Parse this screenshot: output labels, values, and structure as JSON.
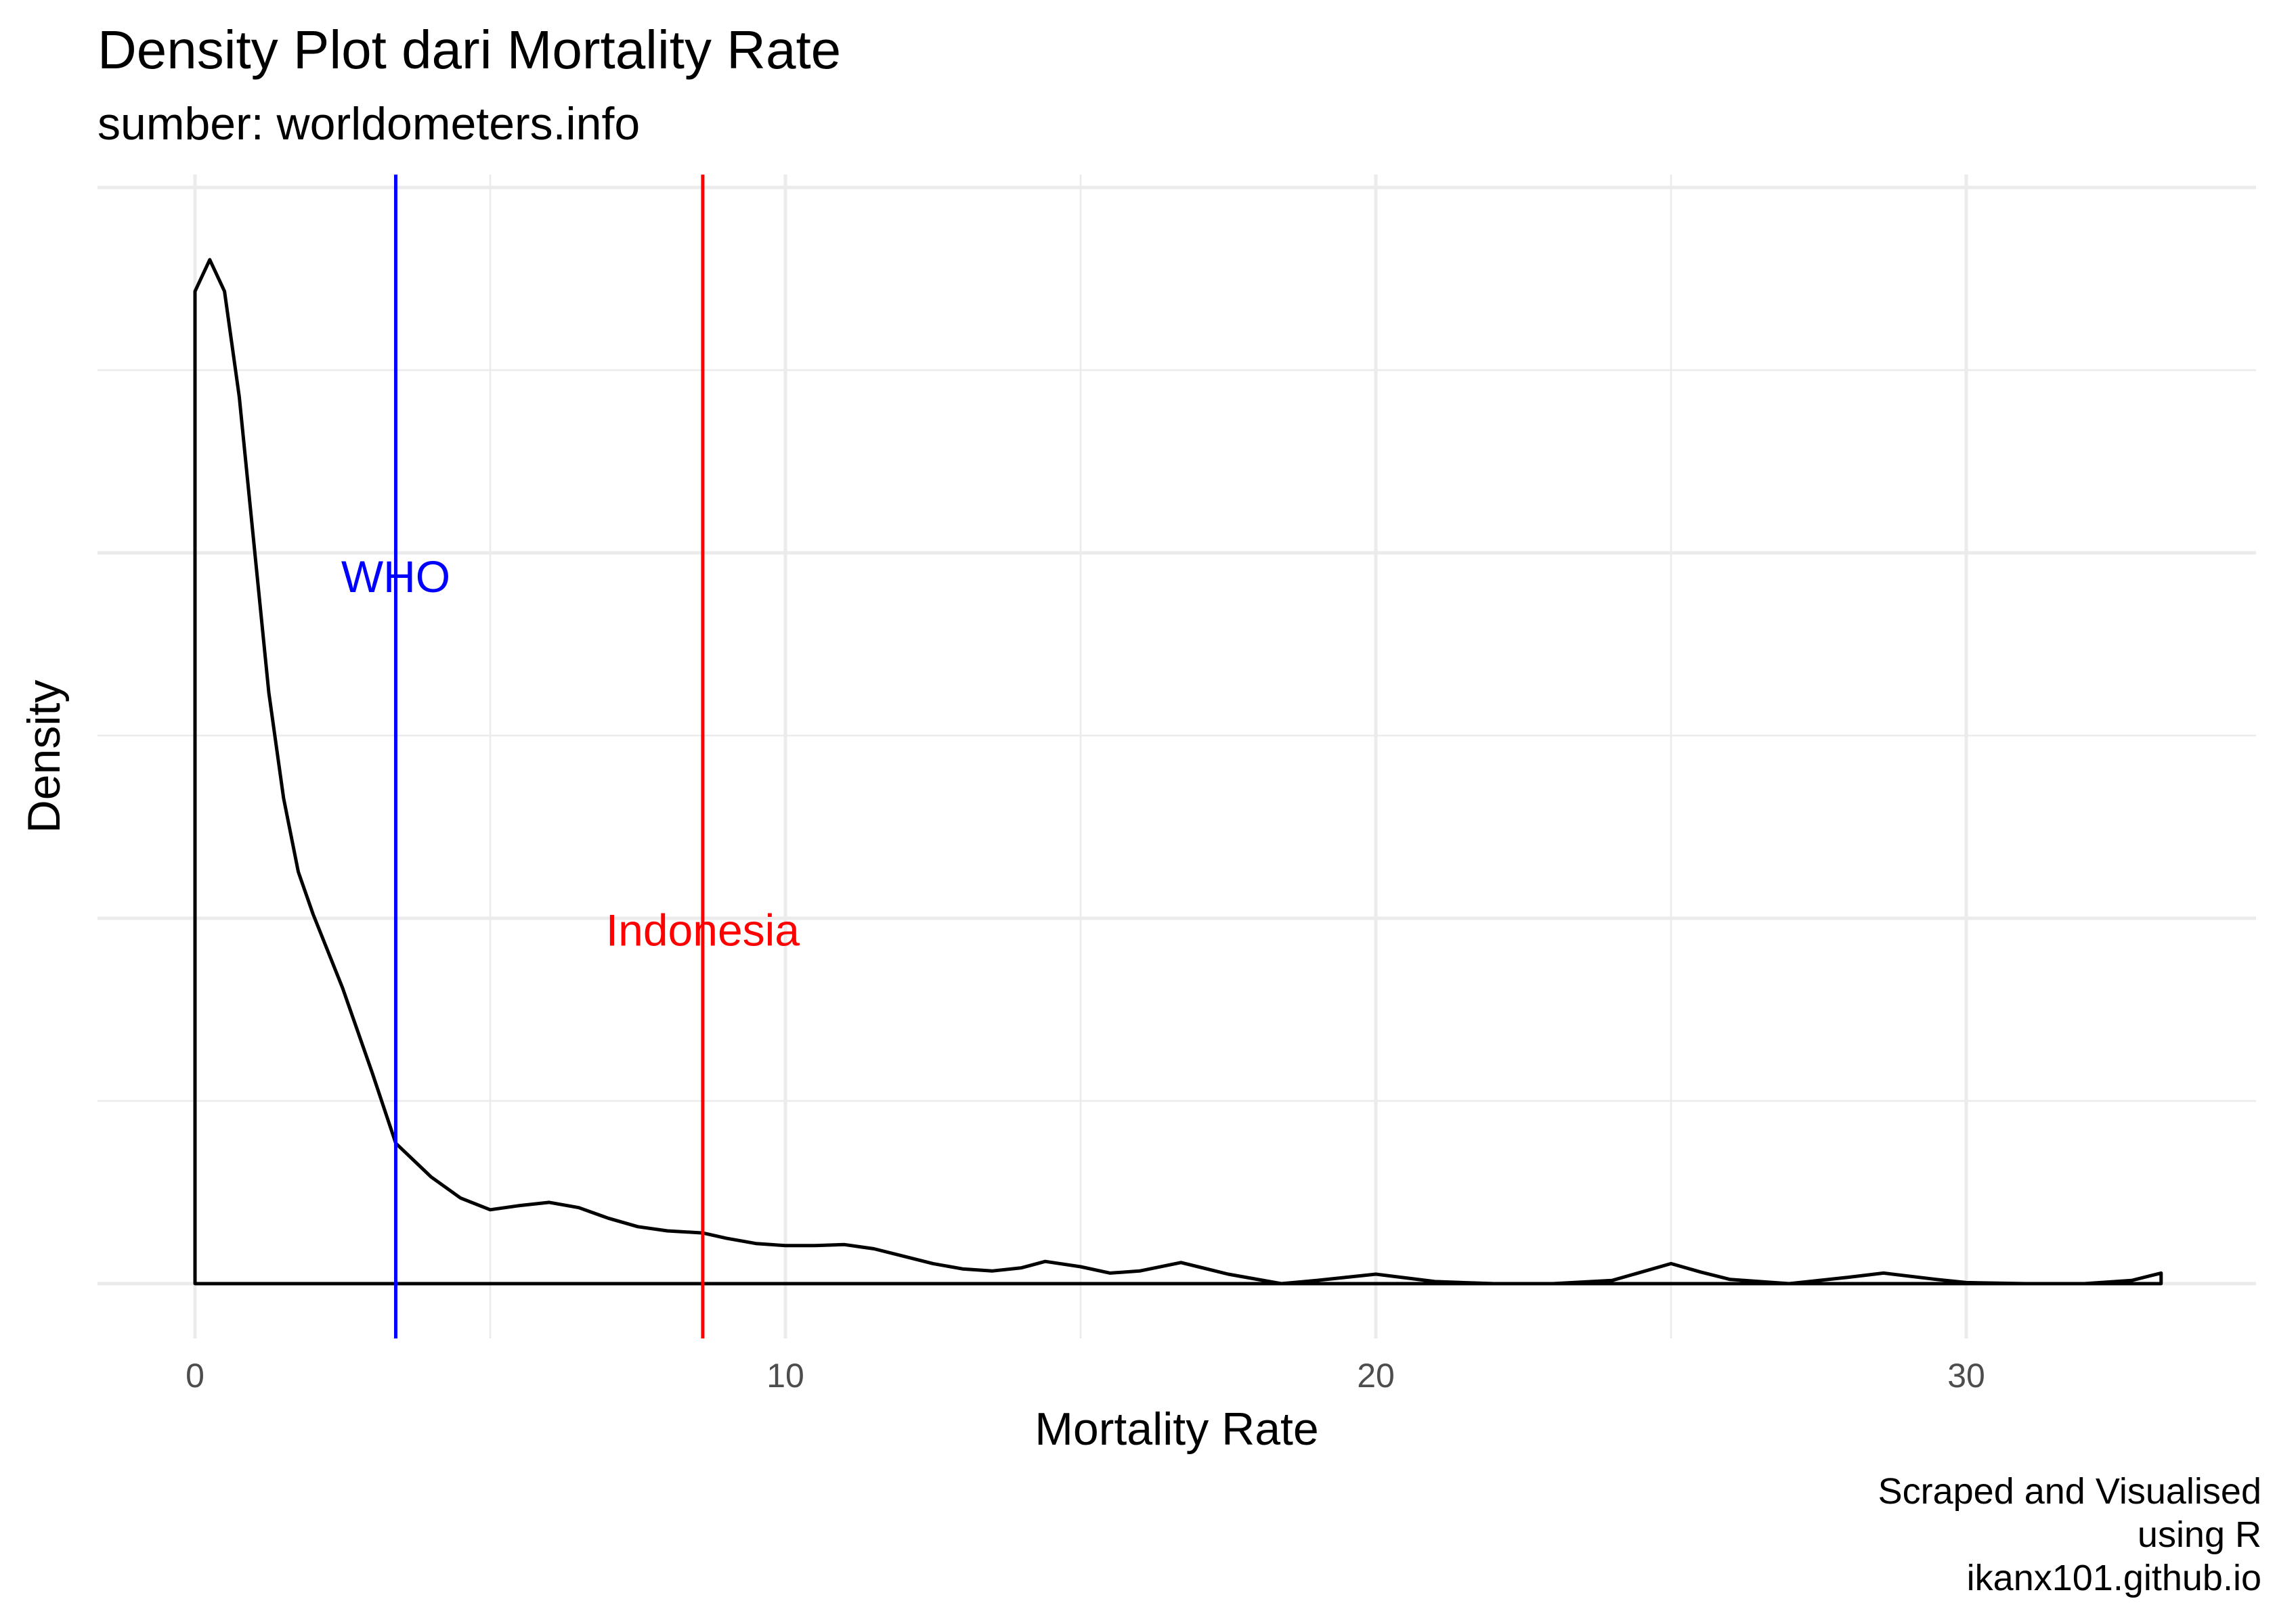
{
  "chart_data": {
    "type": "line",
    "title": "Density Plot dari Mortality Rate",
    "subtitle": "sumber: worldometers.info",
    "xlabel": "Mortality Rate",
    "ylabel": "Density",
    "caption": [
      "Scraped and Visualised",
      "using R",
      "ikanx101.github.io"
    ],
    "xlim": [
      -1.65,
      34.65
    ],
    "x_ticks": [
      0,
      10,
      20,
      30
    ],
    "x_tick_labels": [
      "0",
      "10",
      "20",
      "30"
    ],
    "y_tick_labels_shown": false,
    "grid": true,
    "series": [
      {
        "color": "#000000",
        "x": [
          0,
          0.25,
          0.5,
          0.75,
          1.0,
          1.25,
          1.5,
          1.75,
          2.0,
          2.5,
          3.0,
          3.4,
          4.0,
          4.5,
          5.0,
          5.5,
          6.0,
          6.5,
          7.0,
          7.5,
          8.0,
          8.6,
          9.0,
          9.5,
          10.0,
          10.5,
          11.0,
          11.5,
          12.0,
          12.5,
          13.0,
          13.5,
          14.0,
          14.4,
          15.0,
          15.5,
          16.0,
          16.7,
          17.5,
          18.4,
          19.0,
          20.0,
          21.0,
          22.0,
          23.0,
          24.0,
          25.0,
          25.5,
          26.0,
          27.0,
          28.0,
          28.6,
          29.5,
          30.0,
          31.0,
          32.0,
          32.8,
          33.3
        ],
        "y": [
          0.94,
          0.97,
          0.94,
          0.84,
          0.7,
          0.56,
          0.46,
          0.39,
          0.35,
          0.28,
          0.2,
          0.133,
          0.101,
          0.081,
          0.07,
          0.074,
          0.077,
          0.072,
          0.062,
          0.054,
          0.05,
          0.048,
          0.043,
          0.038,
          0.036,
          0.036,
          0.037,
          0.033,
          0.026,
          0.019,
          0.014,
          0.012,
          0.015,
          0.021,
          0.016,
          0.01,
          0.012,
          0.02,
          0.009,
          0.0,
          0.003,
          0.009,
          0.002,
          0.0,
          0.0,
          0.003,
          0.019,
          0.011,
          0.004,
          0.0,
          0.006,
          0.01,
          0.004,
          0.001,
          0.0,
          0.0,
          0.003,
          0.01
        ]
      }
    ],
    "reference_lines": [
      {
        "label": "WHO",
        "x": 3.4,
        "label_y": 0.67,
        "color": "#0000ff"
      },
      {
        "label": "Indonesia",
        "x": 8.6,
        "label_y": 0.335,
        "color": "#ff0000"
      }
    ]
  }
}
